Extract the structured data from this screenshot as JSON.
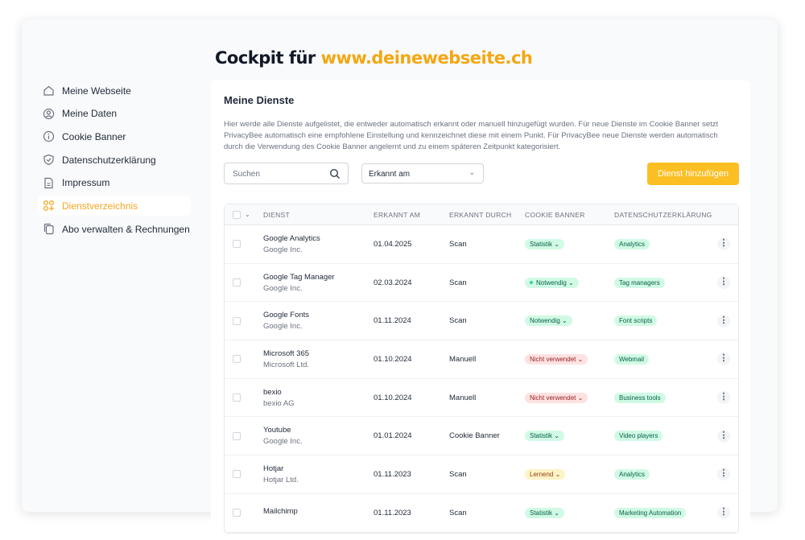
{
  "header": {
    "title_prefix": "Cockpit für",
    "title_url": "www.deinewebseite.ch"
  },
  "sidebar": {
    "items": [
      {
        "label": "Meine Webseite",
        "icon": "home-icon"
      },
      {
        "label": "Meine Daten",
        "icon": "user-circle-icon"
      },
      {
        "label": "Cookie Banner",
        "icon": "info-icon"
      },
      {
        "label": "Datenschutzerklärung",
        "icon": "shield-check-icon"
      },
      {
        "label": "Impressum",
        "icon": "document-icon"
      },
      {
        "label": "Dienstverzeichnis",
        "icon": "apps-add-icon",
        "active": true
      },
      {
        "label": "Abo verwalten & Rechnungen",
        "icon": "copy-icon"
      }
    ]
  },
  "main": {
    "title": "Meine Dienste",
    "description": "Hier werde alle Dienste aufgelistet, die entweder automatisch erkannt oder manuell hinzugefügt wurden. Für neue Dienste im Cookie Banner setzt PrivacyBee automatisch eine empfohlene Einstellung und kennzeichnet diese mit einem Punkt. Für PrivacyBee neue Dienste werden automatisch durch die Verwendung des Cookie Banner angelernt und zu einem späteren Zeitpunkt kategorisiert.",
    "search_placeholder": "Suchen",
    "sort_value": "Erkannt am",
    "add_button": "Dienst hinzufügen",
    "columns": [
      "DIENST",
      "ERKANNT AM",
      "ERKANNT DURCH",
      "COOKIE BANNER",
      "DATENSCHUTZERKLÄRUNG"
    ],
    "rows": [
      {
        "name": "Google Analytics",
        "vendor": "Google Inc.",
        "date": "01.04.2025",
        "by": "Scan",
        "banner": "Statistik",
        "status": "green",
        "dot": false,
        "category": "Analytics"
      },
      {
        "name": "Google Tag Manager",
        "vendor": "Google Inc.",
        "date": "02.03.2024",
        "by": "Scan",
        "banner": "Notwendig",
        "status": "green",
        "dot": true,
        "category": "Tag managers"
      },
      {
        "name": "Google Fonts",
        "vendor": "Google Inc.",
        "date": "01.11.2024",
        "by": "Scan",
        "banner": "Notwendig",
        "status": "green",
        "dot": false,
        "category": "Font scripts"
      },
      {
        "name": "Microsoft 365",
        "vendor": "Microsoft Ltd.",
        "date": "01.10.2024",
        "by": "Manuell",
        "banner": "Nicht verwendet",
        "status": "red",
        "dot": false,
        "category": "Webmail"
      },
      {
        "name": "bexio",
        "vendor": "bexio AG",
        "date": "01.10.2024",
        "by": "Manuell",
        "banner": "Nicht verwendet",
        "status": "red",
        "dot": false,
        "category": "Business tools"
      },
      {
        "name": "Youtube",
        "vendor": "Google Inc.",
        "date": "01.01.2024",
        "by": "Cookie Banner",
        "banner": "Statistik",
        "status": "green",
        "dot": false,
        "category": "Video players"
      },
      {
        "name": "Hotjar",
        "vendor": "Hotjar Ltd.",
        "date": "01.11.2023",
        "by": "Scan",
        "banner": "Lernend",
        "status": "yellow",
        "dot": false,
        "category": "Analytics"
      },
      {
        "name": "Mailchimp",
        "vendor": "",
        "date": "01.11.2023",
        "by": "Scan",
        "banner": "Statistik",
        "status": "green",
        "dot": false,
        "category": "Marketing Automation"
      }
    ]
  },
  "colors": {
    "accent": "#f3a712",
    "button": "#fbbf24"
  }
}
